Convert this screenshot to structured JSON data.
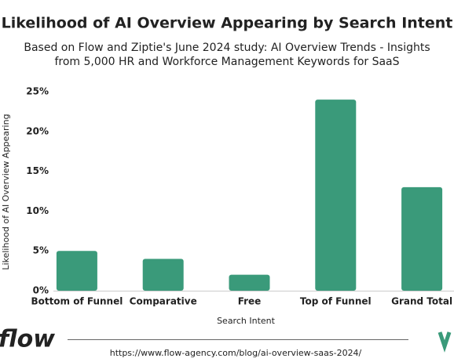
{
  "chart_data": {
    "type": "bar",
    "title": "Likelihood of AI Overview Appearing by Search Intent",
    "subtitle": [
      "Based on Flow and Ziptie's June 2024 study: AI Overview Trends - Insights",
      "from 5,000 HR and Workforce Management Keywords for SaaS"
    ],
    "x_label": "Search Intent",
    "y_label": "Likelihood of AI Overview Appearing",
    "categories": [
      "Bottom of Funnel",
      "Comparative",
      "Free",
      "Top of Funnel",
      "Grand Total"
    ],
    "values": [
      5,
      4,
      2,
      24,
      13
    ],
    "color": "#3a9a7a",
    "ylim": [
      0,
      25
    ],
    "yticks": [
      {
        "value": 0,
        "label": "0%"
      },
      {
        "value": 5,
        "label": "5%"
      },
      {
        "value": 10,
        "label": "10%"
      },
      {
        "value": 15,
        "label": "15%"
      },
      {
        "value": 20,
        "label": "20%"
      },
      {
        "value": 25,
        "label": "25%"
      }
    ],
    "grid": false
  },
  "footer": {
    "logo": "flow",
    "source": "https://www.flow-agency.com/blog/ai-overview-saas-2024/"
  }
}
